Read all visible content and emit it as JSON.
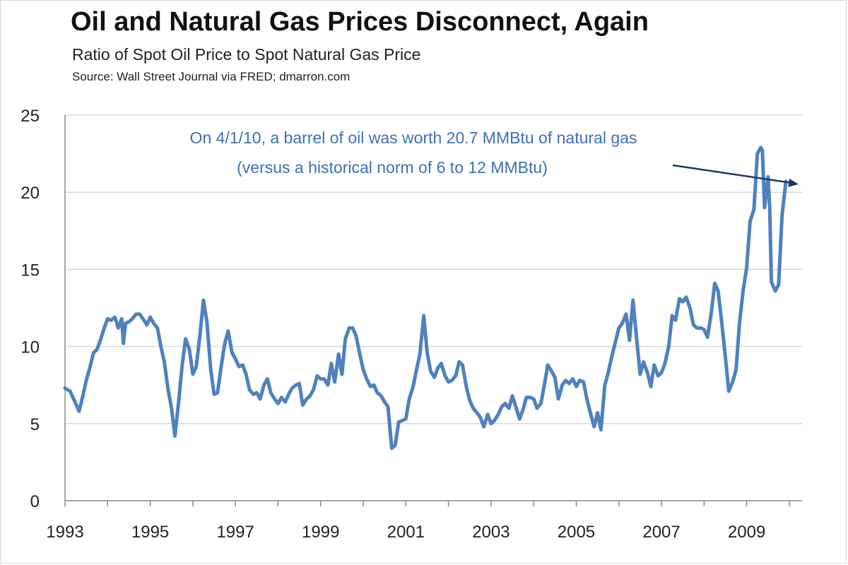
{
  "colors": {
    "line": "#4f81bd",
    "annotation": "#3f6fb6",
    "arrow": "#1f3864",
    "grid": "#d9d9d9"
  },
  "chart_data": {
    "type": "line",
    "title": "Oil and Natural Gas Prices Disconnect, Again",
    "subtitle": "Ratio of Spot Oil Price to Spot Natural Gas Price",
    "source": "Source: Wall Street Journal via FRED; dmarron.com",
    "xlabel": "",
    "ylabel": "",
    "ylim": [
      0,
      25
    ],
    "yticks": [
      0,
      5,
      10,
      15,
      20,
      25
    ],
    "xlim": [
      1993,
      2010.3
    ],
    "xticks": [
      "1993",
      "1995",
      "1997",
      "1999",
      "2001",
      "2003",
      "2005",
      "2007",
      "2009"
    ],
    "grid": true,
    "legend": "none",
    "annotation": {
      "lines": [
        "On 4/1/10, a barrel of oil was worth 20.7 MMBtu of natural gas",
        "(versus a historical norm of 6 to 12 MMBtu)"
      ],
      "point": [
        2010.25,
        20.7
      ]
    },
    "series": [
      {
        "points": [
          [
            1993.0,
            7.3
          ],
          [
            1993.12,
            7.1
          ],
          [
            1993.25,
            6.3
          ],
          [
            1993.33,
            5.8
          ],
          [
            1993.42,
            6.8
          ],
          [
            1993.5,
            7.8
          ],
          [
            1993.58,
            8.6
          ],
          [
            1993.67,
            9.6
          ],
          [
            1993.75,
            9.8
          ],
          [
            1993.83,
            10.4
          ],
          [
            1993.92,
            11.2
          ],
          [
            1994.0,
            11.8
          ],
          [
            1994.08,
            11.7
          ],
          [
            1994.17,
            11.9
          ],
          [
            1994.25,
            11.2
          ],
          [
            1994.33,
            11.8
          ],
          [
            1994.37,
            10.2
          ],
          [
            1994.42,
            11.5
          ],
          [
            1994.5,
            11.6
          ],
          [
            1994.58,
            11.8
          ],
          [
            1994.67,
            12.1
          ],
          [
            1994.75,
            12.1
          ],
          [
            1994.83,
            11.8
          ],
          [
            1994.92,
            11.4
          ],
          [
            1995.0,
            11.9
          ],
          [
            1995.08,
            11.5
          ],
          [
            1995.17,
            11.2
          ],
          [
            1995.25,
            10.0
          ],
          [
            1995.33,
            9.0
          ],
          [
            1995.42,
            7.2
          ],
          [
            1995.5,
            6.0
          ],
          [
            1995.58,
            4.2
          ],
          [
            1995.67,
            6.5
          ],
          [
            1995.75,
            8.8
          ],
          [
            1995.83,
            10.5
          ],
          [
            1995.92,
            9.8
          ],
          [
            1996.0,
            8.2
          ],
          [
            1996.08,
            8.7
          ],
          [
            1996.17,
            10.8
          ],
          [
            1996.25,
            13.0
          ],
          [
            1996.33,
            11.6
          ],
          [
            1996.42,
            8.5
          ],
          [
            1996.5,
            6.9
          ],
          [
            1996.58,
            7.0
          ],
          [
            1996.67,
            8.8
          ],
          [
            1996.75,
            10.2
          ],
          [
            1996.83,
            11.0
          ],
          [
            1996.92,
            9.6
          ],
          [
            1997.0,
            9.2
          ],
          [
            1997.08,
            8.7
          ],
          [
            1997.17,
            8.8
          ],
          [
            1997.25,
            8.2
          ],
          [
            1997.33,
            7.2
          ],
          [
            1997.42,
            6.9
          ],
          [
            1997.5,
            7.0
          ],
          [
            1997.58,
            6.6
          ],
          [
            1997.67,
            7.5
          ],
          [
            1997.75,
            7.9
          ],
          [
            1997.83,
            7.0
          ],
          [
            1997.92,
            6.6
          ],
          [
            1998.0,
            6.3
          ],
          [
            1998.08,
            6.7
          ],
          [
            1998.17,
            6.4
          ],
          [
            1998.25,
            6.9
          ],
          [
            1998.33,
            7.3
          ],
          [
            1998.42,
            7.5
          ],
          [
            1998.5,
            7.6
          ],
          [
            1998.58,
            6.2
          ],
          [
            1998.67,
            6.6
          ],
          [
            1998.75,
            6.8
          ],
          [
            1998.83,
            7.2
          ],
          [
            1998.92,
            8.1
          ],
          [
            1999.0,
            7.9
          ],
          [
            1999.08,
            7.9
          ],
          [
            1999.17,
            7.5
          ],
          [
            1999.25,
            8.9
          ],
          [
            1999.33,
            7.7
          ],
          [
            1999.42,
            9.5
          ],
          [
            1999.5,
            8.2
          ],
          [
            1999.58,
            10.5
          ],
          [
            1999.67,
            11.2
          ],
          [
            1999.75,
            11.2
          ],
          [
            1999.83,
            10.7
          ],
          [
            1999.92,
            9.5
          ],
          [
            2000.0,
            8.5
          ],
          [
            2000.08,
            7.9
          ],
          [
            2000.17,
            7.4
          ],
          [
            2000.25,
            7.5
          ],
          [
            2000.33,
            7.0
          ],
          [
            2000.42,
            6.8
          ],
          [
            2000.5,
            6.4
          ],
          [
            2000.58,
            6.1
          ],
          [
            2000.67,
            3.4
          ],
          [
            2000.75,
            3.6
          ],
          [
            2000.83,
            5.1
          ],
          [
            2000.92,
            5.2
          ],
          [
            2001.0,
            5.3
          ],
          [
            2001.08,
            6.6
          ],
          [
            2001.17,
            7.4
          ],
          [
            2001.25,
            8.5
          ],
          [
            2001.33,
            9.5
          ],
          [
            2001.42,
            12.0
          ],
          [
            2001.5,
            9.6
          ],
          [
            2001.58,
            8.4
          ],
          [
            2001.67,
            8.0
          ],
          [
            2001.75,
            8.6
          ],
          [
            2001.83,
            8.9
          ],
          [
            2001.92,
            8.1
          ],
          [
            2002.0,
            7.7
          ],
          [
            2002.08,
            7.8
          ],
          [
            2002.17,
            8.1
          ],
          [
            2002.25,
            9.0
          ],
          [
            2002.33,
            8.8
          ],
          [
            2002.42,
            7.4
          ],
          [
            2002.5,
            6.5
          ],
          [
            2002.58,
            6.0
          ],
          [
            2002.67,
            5.7
          ],
          [
            2002.75,
            5.4
          ],
          [
            2002.83,
            4.8
          ],
          [
            2002.92,
            5.6
          ],
          [
            2003.0,
            5.0
          ],
          [
            2003.08,
            5.2
          ],
          [
            2003.17,
            5.6
          ],
          [
            2003.25,
            6.1
          ],
          [
            2003.33,
            6.3
          ],
          [
            2003.42,
            6.0
          ],
          [
            2003.5,
            6.8
          ],
          [
            2003.58,
            6.1
          ],
          [
            2003.67,
            5.3
          ],
          [
            2003.75,
            5.9
          ],
          [
            2003.83,
            6.7
          ],
          [
            2003.92,
            6.7
          ],
          [
            2004.0,
            6.6
          ],
          [
            2004.08,
            6.0
          ],
          [
            2004.17,
            6.3
          ],
          [
            2004.25,
            7.5
          ],
          [
            2004.33,
            8.8
          ],
          [
            2004.42,
            8.4
          ],
          [
            2004.5,
            8.0
          ],
          [
            2004.58,
            6.6
          ],
          [
            2004.67,
            7.5
          ],
          [
            2004.75,
            7.8
          ],
          [
            2004.83,
            7.6
          ],
          [
            2004.92,
            7.9
          ],
          [
            2005.0,
            7.4
          ],
          [
            2005.08,
            7.8
          ],
          [
            2005.17,
            7.7
          ],
          [
            2005.25,
            6.6
          ],
          [
            2005.33,
            5.7
          ],
          [
            2005.42,
            4.8
          ],
          [
            2005.5,
            5.7
          ],
          [
            2005.58,
            4.6
          ],
          [
            2005.67,
            7.5
          ],
          [
            2005.75,
            8.3
          ],
          [
            2005.83,
            9.3
          ],
          [
            2005.92,
            10.3
          ],
          [
            2006.0,
            11.2
          ],
          [
            2006.08,
            11.5
          ],
          [
            2006.17,
            12.1
          ],
          [
            2006.25,
            10.4
          ],
          [
            2006.33,
            13.0
          ],
          [
            2006.42,
            10.4
          ],
          [
            2006.5,
            8.2
          ],
          [
            2006.58,
            9.0
          ],
          [
            2006.67,
            8.3
          ],
          [
            2006.75,
            7.4
          ],
          [
            2006.83,
            8.8
          ],
          [
            2006.92,
            8.1
          ],
          [
            2007.0,
            8.3
          ],
          [
            2007.08,
            8.9
          ],
          [
            2007.17,
            10.0
          ],
          [
            2007.25,
            12.0
          ],
          [
            2007.33,
            11.7
          ],
          [
            2007.42,
            13.1
          ],
          [
            2007.5,
            12.9
          ],
          [
            2007.58,
            13.2
          ],
          [
            2007.67,
            12.5
          ],
          [
            2007.75,
            11.4
          ],
          [
            2007.83,
            11.2
          ],
          [
            2007.92,
            11.2
          ],
          [
            2008.0,
            11.1
          ],
          [
            2008.08,
            10.6
          ],
          [
            2008.17,
            12.2
          ],
          [
            2008.25,
            14.1
          ],
          [
            2008.33,
            13.6
          ],
          [
            2008.42,
            11.4
          ],
          [
            2008.5,
            9.3
          ],
          [
            2008.58,
            7.1
          ],
          [
            2008.67,
            7.7
          ],
          [
            2008.75,
            8.5
          ],
          [
            2008.83,
            11.5
          ],
          [
            2008.92,
            13.7
          ],
          [
            2009.0,
            15.1
          ],
          [
            2009.08,
            18.1
          ],
          [
            2009.17,
            18.9
          ],
          [
            2009.25,
            22.5
          ],
          [
            2009.33,
            22.9
          ],
          [
            2009.37,
            22.7
          ],
          [
            2009.42,
            19.0
          ],
          [
            2009.5,
            21.0
          ],
          [
            2009.54,
            19.0
          ],
          [
            2009.58,
            14.2
          ],
          [
            2009.67,
            13.6
          ],
          [
            2009.75,
            14.0
          ],
          [
            2009.83,
            18.5
          ],
          [
            2009.92,
            20.7
          ]
        ]
      }
    ]
  }
}
